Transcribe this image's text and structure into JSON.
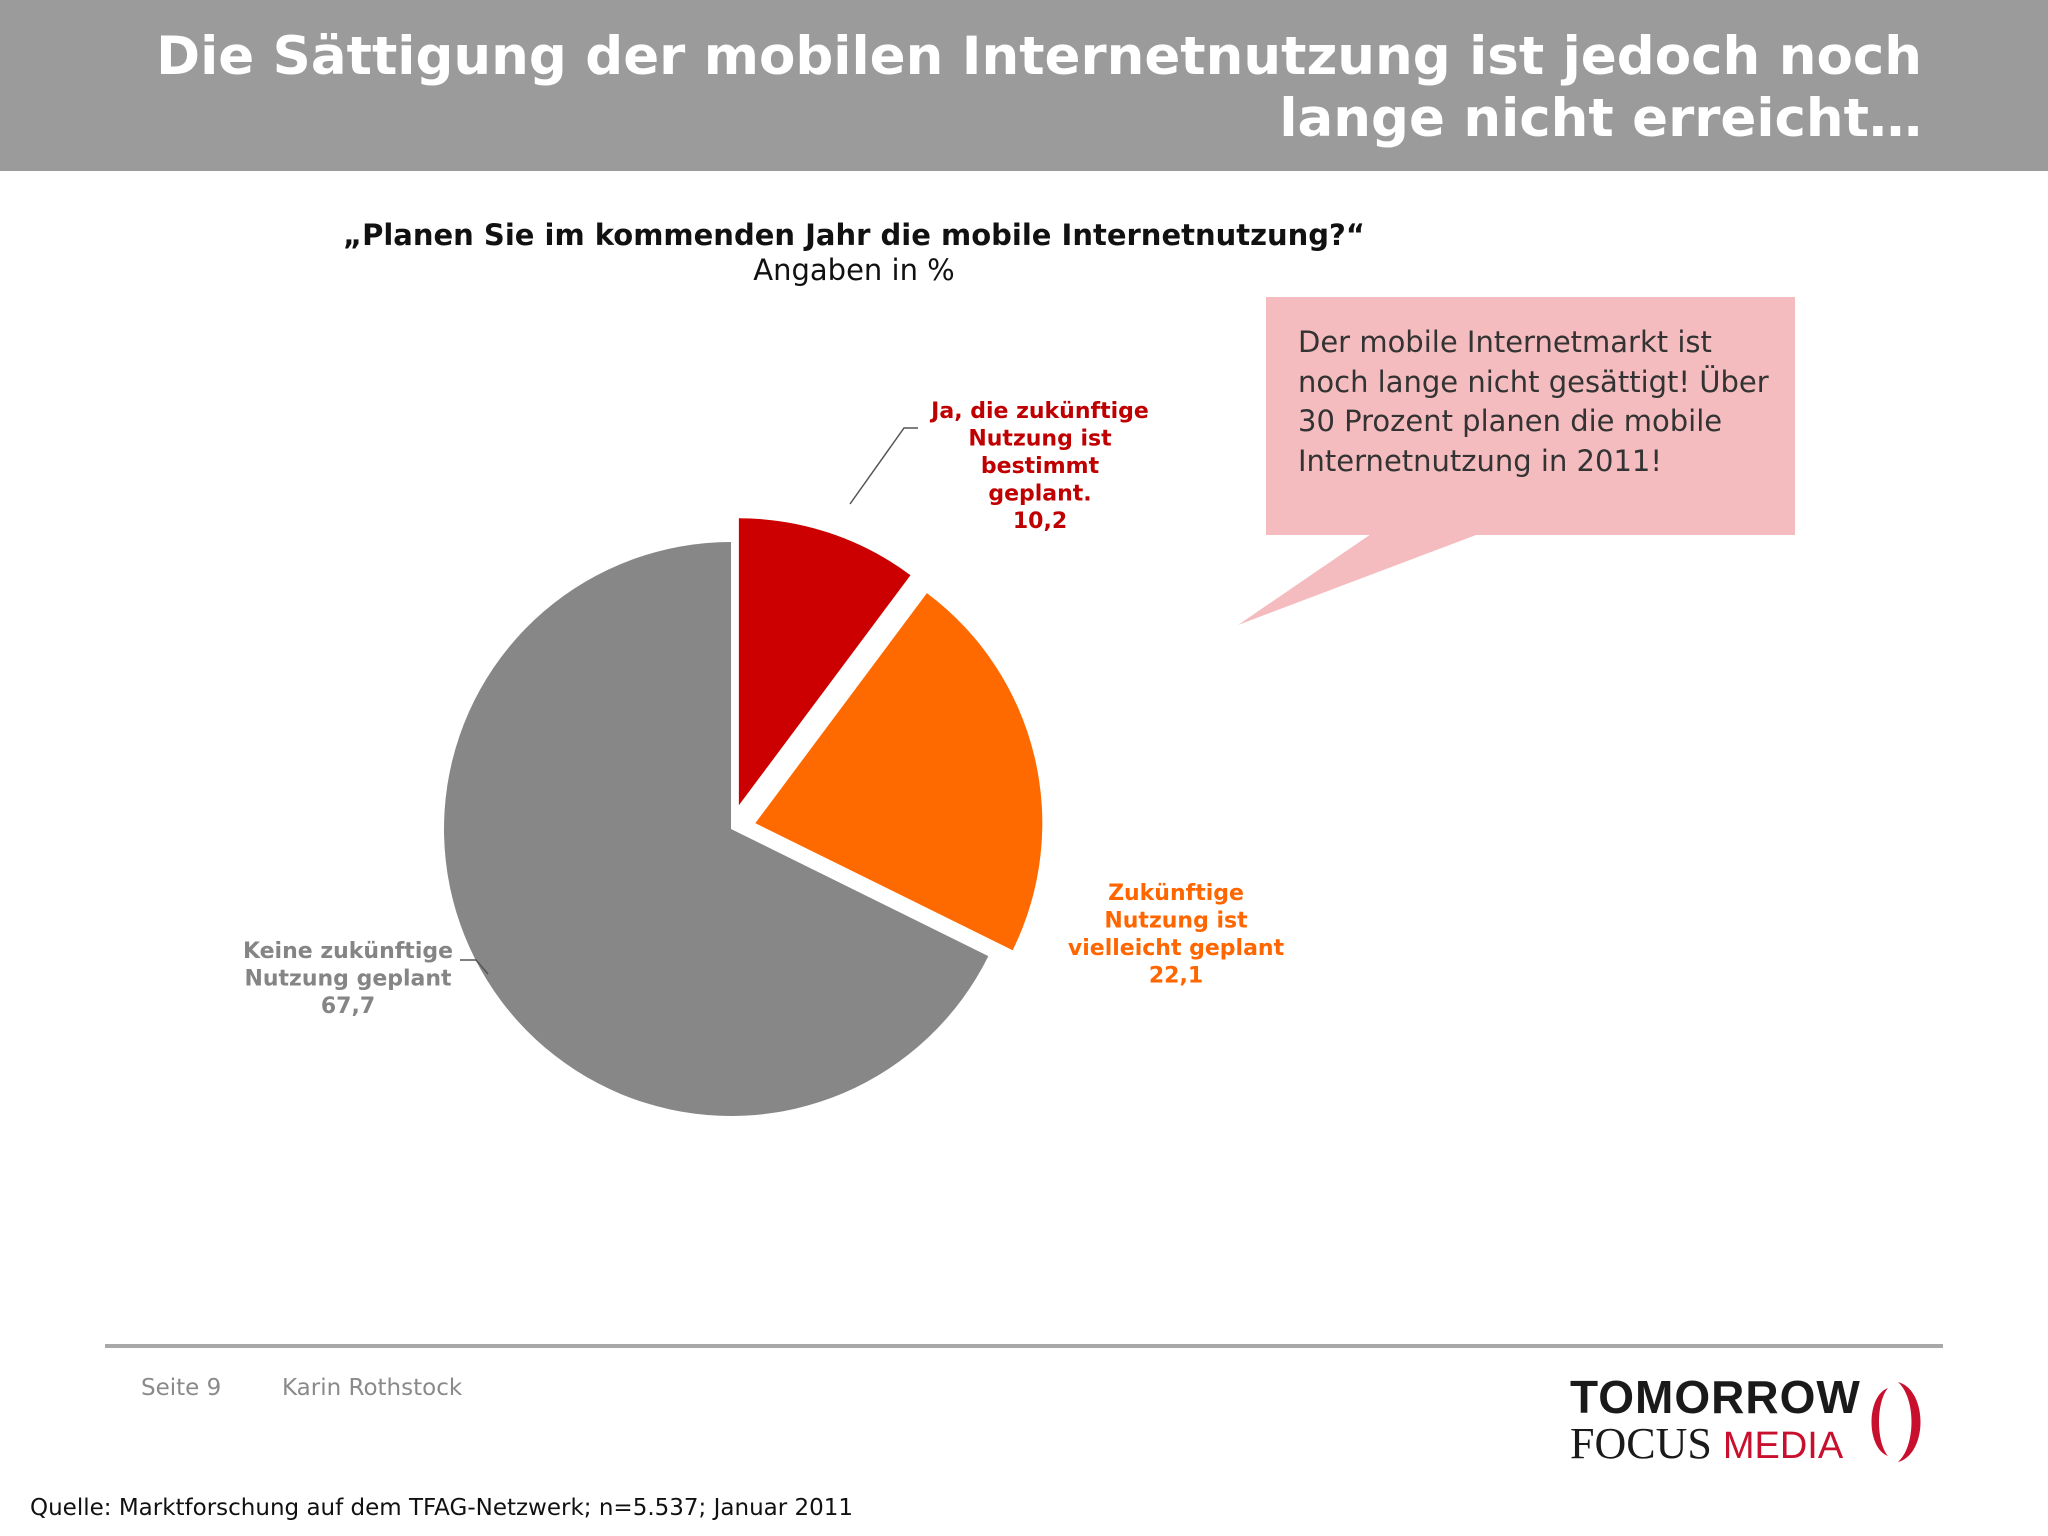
{
  "header": {
    "title_lines": [
      "Die Sättigung der mobilen Internetnutzung ist jedoch noch",
      "lange nicht erreicht…"
    ]
  },
  "callout": {
    "lines": [
      "Der mobile Internetmarkt ist",
      "noch lange nicht gesättigt! Über",
      "30 Prozent planen die mobile",
      "Internetnutzung in 2011!"
    ]
  },
  "footer": {
    "page": "Seite 9",
    "author": "Karin Rothstock",
    "logo_line1": "TOMORROW",
    "logo_focus": "FOCUS",
    "logo_media": "MEDIA",
    "source": "Quelle: Marktforschung auf dem TFAG-Netzwerk; n=5.537; Januar 2011"
  },
  "colors": {
    "header": "#9b9b9b",
    "callout": "#f4bcbf",
    "logo_red": "#c8102e"
  },
  "chart_data": {
    "type": "pie",
    "title": "„Planen Sie im kommenden Jahr die mobile Internetnutzung?“",
    "subtitle": "Angaben in %",
    "start_angle_deg": 0,
    "direction": "clockwise",
    "slices": [
      {
        "label_lines": [
          "Ja, die zukünftige",
          "Nutzung ist",
          "bestimmt",
          "geplant."
        ],
        "value": 10.2,
        "value_label": "10,2",
        "color": "#cc0000",
        "label_color": "#c00000",
        "exploded": true
      },
      {
        "label_lines": [
          "Zukünftige",
          "Nutzung ist",
          "vielleicht geplant"
        ],
        "value": 22.1,
        "value_label": "22,1",
        "color": "#ff6a00",
        "label_color": "#ff6600",
        "exploded": true
      },
      {
        "label_lines": [
          "Keine zukünftige",
          "Nutzung geplant"
        ],
        "value": 67.7,
        "value_label": "67,7",
        "color": "#878787",
        "label_color": "#858585",
        "exploded": false
      }
    ]
  }
}
